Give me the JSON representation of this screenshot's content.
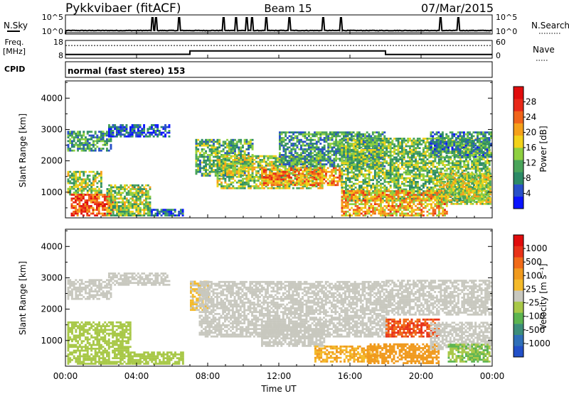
{
  "header": {
    "station": "Pykkvibaer (fitACF)",
    "beam": "Beam 15",
    "date": "07/Mar/2015"
  },
  "param_panels": {
    "nsky": {
      "label": "N.Sky",
      "right_label": "N.Search",
      "left_ticks": [
        "10^5",
        "10^0"
      ],
      "right_ticks": [
        "10^5",
        "10^0"
      ]
    },
    "freq": {
      "label_line1": "Freq.",
      "label_line2": "[MHz]",
      "right_label": "Nave",
      "left_ticks": [
        "18",
        "8"
      ],
      "right_ticks": [
        "60",
        "0"
      ]
    },
    "cpid": {
      "label": "CPID",
      "mode_text": "normal (fast stereo) 153"
    }
  },
  "power_panel": {
    "ylabel": "Slant Range [km]",
    "colorbar_label": "Power [dB]",
    "colorbar_ticks": [
      "28",
      "24",
      "20",
      "16",
      "12",
      "8",
      "4"
    ]
  },
  "velocity_panel": {
    "ylabel": "Slant Range [km]",
    "colorbar_label": "Velocity [m s⁻¹]",
    "colorbar_ticks": [
      "1000",
      "500",
      "100",
      "25",
      "-25",
      "-100",
      "-500",
      "-1000"
    ]
  },
  "x_axis": {
    "label": "Time UT",
    "ticks": [
      "00:00",
      "04:00",
      "08:00",
      "12:00",
      "16:00",
      "20:00",
      "00:00"
    ]
  },
  "colors": {
    "power_scale": [
      "#0a14ff",
      "#2850c8",
      "#2c8a66",
      "#4aa45a",
      "#8ed040",
      "#f2d21a",
      "#f5a01a",
      "#f0641a",
      "#e82818",
      "#e00c0c"
    ],
    "velocity_scale": [
      "#2250c8",
      "#2f6fb8",
      "#3d8e7a",
      "#5cb450",
      "#a8c848",
      "#c8c8bf",
      "#f4ba2a",
      "#f09a1e",
      "#f06a18",
      "#e83218",
      "#e00c0c"
    ],
    "ground_scatter": "#c8c8bf"
  },
  "chart_data": {
    "type": "heatmap",
    "x_range_hours": [
      0,
      24
    ],
    "y_range_km": [
      180,
      4550
    ],
    "y_ticks_km": [
      1000,
      2000,
      3000,
      4000
    ],
    "power_range_db": [
      0,
      30
    ],
    "velocity_range": [
      -1000,
      1000
    ],
    "nsky_series": {
      "baseline": 1,
      "spikes_hours": [
        4.9,
        5.1,
        6.4,
        8.9,
        9.6,
        10.2,
        10.5,
        11.3,
        12.6,
        14.5,
        15.5,
        21.1,
        22.1
      ]
    },
    "nsearch_series": {
      "baseline": 0.3
    },
    "freq_series_mhz": [
      {
        "x": 0,
        "y": 10.1
      },
      {
        "x": 7.0,
        "y": 10.2
      },
      {
        "x": 7.0,
        "y": 12.1
      },
      {
        "x": 18.0,
        "y": 12.1
      },
      {
        "x": 18.0,
        "y": 10.1
      },
      {
        "x": 24,
        "y": 10.1
      }
    ],
    "nave_line": 43,
    "power_regions": [
      {
        "t0": 0.1,
        "t1": 2.6,
        "r0": 2300,
        "r1": 2950,
        "p": 9
      },
      {
        "t0": 2.4,
        "t1": 5.8,
        "r0": 2750,
        "r1": 3150,
        "p": 5
      },
      {
        "t0": 0.1,
        "t1": 2.0,
        "r0": 900,
        "r1": 1650,
        "p": 13
      },
      {
        "t0": 0.3,
        "t1": 2.6,
        "r0": 230,
        "r1": 900,
        "p": 24
      },
      {
        "t0": 2.3,
        "t1": 4.8,
        "r0": 230,
        "r1": 1200,
        "p": 13
      },
      {
        "t0": 4.8,
        "t1": 6.6,
        "r0": 230,
        "r1": 450,
        "p": 6
      },
      {
        "t0": 7.3,
        "t1": 10.5,
        "r0": 1500,
        "r1": 2700,
        "p": 11
      },
      {
        "t0": 8.5,
        "t1": 14.5,
        "r0": 1100,
        "r1": 2150,
        "p": 14
      },
      {
        "t0": 11.0,
        "t1": 15.5,
        "r0": 1200,
        "r1": 1800,
        "p": 20
      },
      {
        "t0": 12.0,
        "t1": 18.0,
        "r0": 1800,
        "r1": 2900,
        "p": 9
      },
      {
        "t0": 15.5,
        "t1": 23.9,
        "r0": 700,
        "r1": 2700,
        "p": 12
      },
      {
        "t0": 15.5,
        "t1": 21.5,
        "r0": 230,
        "r1": 1050,
        "p": 19
      },
      {
        "t0": 21.0,
        "t1": 23.9,
        "r0": 600,
        "r1": 1600,
        "p": 15
      },
      {
        "t0": 20.5,
        "t1": 23.9,
        "r0": 2100,
        "r1": 2900,
        "p": 8
      }
    ],
    "velocity_regions": [
      {
        "t0": 0.1,
        "t1": 3.6,
        "r0": 230,
        "r1": 1600,
        "v": -150
      },
      {
        "t0": 0.1,
        "t1": 2.6,
        "r0": 2300,
        "r1": 2950,
        "v": 0
      },
      {
        "t0": 2.4,
        "t1": 5.8,
        "r0": 2750,
        "r1": 3150,
        "v": 0
      },
      {
        "t0": 3.5,
        "t1": 6.6,
        "r0": 230,
        "r1": 600,
        "v": -200
      },
      {
        "t0": 7.0,
        "t1": 8.0,
        "r0": 1950,
        "r1": 2900,
        "v": 110
      },
      {
        "t0": 7.5,
        "t1": 18.0,
        "r0": 1100,
        "r1": 2900,
        "v": 0
      },
      {
        "t0": 11.0,
        "t1": 14.5,
        "r0": 800,
        "r1": 1500,
        "v": 0
      },
      {
        "t0": 14.0,
        "t1": 17.5,
        "r0": 300,
        "r1": 800,
        "v": 300
      },
      {
        "t0": 17.0,
        "t1": 21.0,
        "r0": 250,
        "r1": 900,
        "v": 400
      },
      {
        "t0": 18.0,
        "t1": 21.0,
        "r0": 1100,
        "r1": 1700,
        "v": 700
      },
      {
        "t0": 18.0,
        "t1": 23.9,
        "r0": 1800,
        "r1": 2900,
        "v": 0
      },
      {
        "t0": 20.5,
        "t1": 23.9,
        "r0": 700,
        "r1": 1600,
        "v": 0
      },
      {
        "t0": 21.5,
        "t1": 23.9,
        "r0": 300,
        "r1": 900,
        "v": -300
      }
    ]
  }
}
